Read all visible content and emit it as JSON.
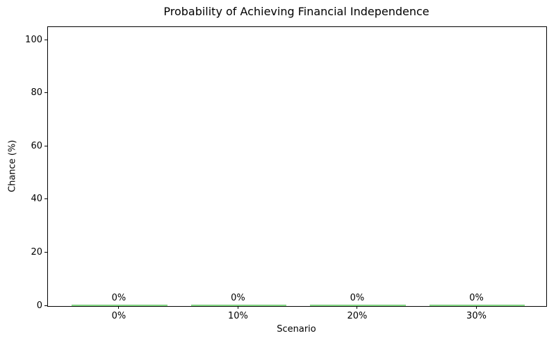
{
  "chart_data": {
    "type": "bar",
    "title": "Probability of Achieving Financial Independence",
    "xlabel": "Scenario",
    "ylabel": "Chance (%)",
    "categories": [
      "0%",
      "10%",
      "20%",
      "30%"
    ],
    "values": [
      0,
      0,
      0,
      0
    ],
    "bar_labels": [
      "0%",
      "0%",
      "0%",
      "0%"
    ],
    "yticks": [
      0,
      20,
      40,
      60,
      80,
      100
    ],
    "ylim": [
      0,
      105
    ],
    "xlim": [
      -0.6,
      3.58
    ],
    "bar_width": 0.8,
    "bar_color": "#90EE90",
    "bar_edge_color": "#79c879",
    "axis_color": "#000000",
    "text_color": "#000000",
    "background_color": "#ffffff",
    "grid": false,
    "legend": null
  }
}
